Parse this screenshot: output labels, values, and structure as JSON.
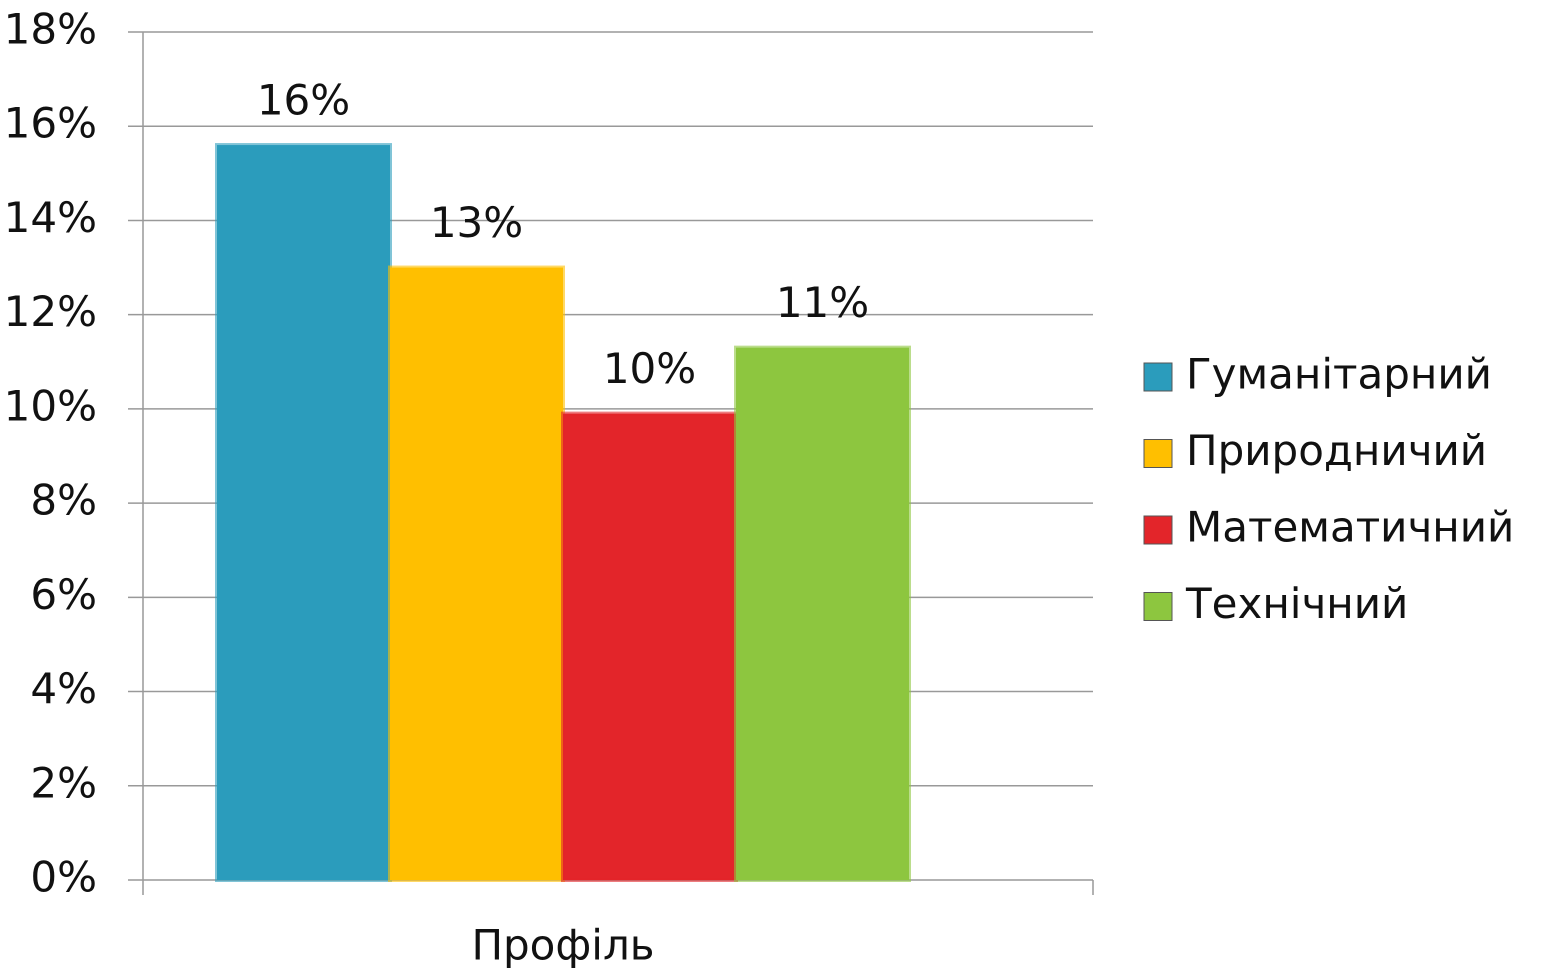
{
  "chart_data": {
    "type": "bar",
    "categories": [
      "Профіль"
    ],
    "series": [
      {
        "name": "Гуманітарний",
        "color": "#2b9cbc",
        "values": [
          15.6
        ],
        "value_labels": [
          "16%"
        ]
      },
      {
        "name": "Природничий",
        "color": "#ffbf00",
        "values": [
          13.0
        ],
        "value_labels": [
          "13%"
        ]
      },
      {
        "name": "Математичний",
        "color": "#e3252a",
        "values": [
          9.9
        ],
        "value_labels": [
          "10%"
        ]
      },
      {
        "name": "Технічний",
        "color": "#8dc63f",
        "values": [
          11.3
        ],
        "value_labels": [
          "11%"
        ]
      }
    ],
    "ylim": [
      0,
      18
    ],
    "yticks": [
      {
        "value": 0,
        "label": "0%"
      },
      {
        "value": 2,
        "label": "2%"
      },
      {
        "value": 4,
        "label": "4%"
      },
      {
        "value": 6,
        "label": "6%"
      },
      {
        "value": 8,
        "label": "8%"
      },
      {
        "value": 10,
        "label": "10%"
      },
      {
        "value": 12,
        "label": "12%"
      },
      {
        "value": 14,
        "label": "14%"
      },
      {
        "value": 16,
        "label": "16%"
      },
      {
        "value": 18,
        "label": "18%"
      }
    ],
    "grid": true,
    "legend": "right"
  }
}
